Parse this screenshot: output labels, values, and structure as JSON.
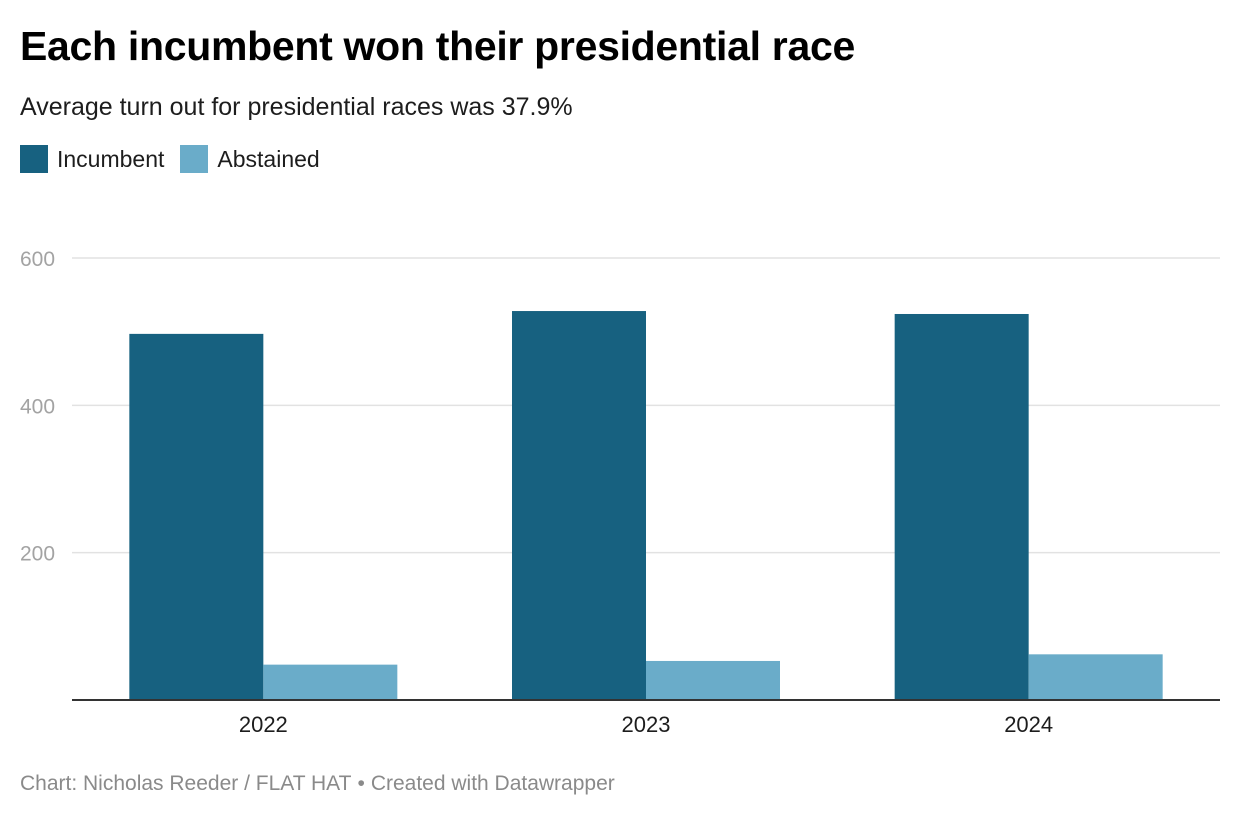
{
  "title": "Each incumbent won their presidential race",
  "subtitle": "Average turn out for presidential races was 37.9%",
  "footer": {
    "chart_credit": "Chart: Nicholas Reeder / FLAT HAT",
    "separator": "•",
    "tool": "Created with Datawrapper"
  },
  "colors": {
    "incumbent": "#176180",
    "abstained": "#6aacc9",
    "grid": "#e2e2e2",
    "axis": "#333333",
    "tick_label": "#a3a3a3"
  },
  "chart_data": {
    "type": "bar",
    "categories": [
      "2022",
      "2023",
      "2024"
    ],
    "series": [
      {
        "name": "Incumbent",
        "values": [
          497,
          528,
          524
        ],
        "color": "#176180"
      },
      {
        "name": "Abstained",
        "values": [
          48,
          53,
          62
        ],
        "color": "#6aacc9"
      }
    ],
    "y_ticks": [
      200,
      400,
      600
    ],
    "ylim": [
      0,
      600
    ],
    "grid": true,
    "legend_position": "top-left",
    "xlabel": "",
    "ylabel": ""
  }
}
